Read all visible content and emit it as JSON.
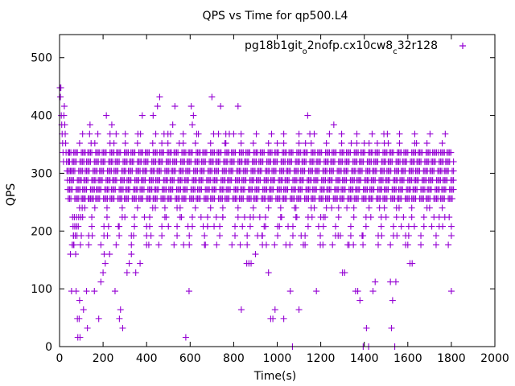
{
  "chart_data": {
    "type": "scatter",
    "title": "QPS vs Time for qp500.L4",
    "xlabel": "Time(s)",
    "ylabel": "QPS",
    "xlim": [
      0,
      2000
    ],
    "ylim": [
      0,
      540
    ],
    "xticks": [
      0,
      200,
      400,
      600,
      800,
      1000,
      1200,
      1400,
      1600,
      1800,
      2000
    ],
    "yticks": [
      0,
      100,
      200,
      300,
      400,
      500
    ],
    "grid": false,
    "legend_position": "top-right",
    "series": [
      {
        "name": "pg18b1git_o2nofp.cx10cw8_c32r128",
        "color": "#9400d3",
        "marker": "plus",
        "dense_levels": [
          256,
          272,
          288,
          304,
          320,
          336
        ],
        "level_range_x": [
          40,
          1810
        ],
        "sparse_levels": [
          176,
          192,
          208,
          224,
          240,
          352,
          368
        ],
        "points": [
          [
            2,
            448
          ],
          [
            4,
            432
          ],
          [
            6,
            448
          ],
          [
            8,
            400
          ],
          [
            10,
            384
          ],
          [
            12,
            368
          ],
          [
            14,
            352
          ],
          [
            16,
            336
          ],
          [
            18,
            320
          ],
          [
            20,
            400
          ],
          [
            22,
            416
          ],
          [
            24,
            384
          ],
          [
            26,
            368
          ],
          [
            28,
            352
          ],
          [
            30,
            336
          ],
          [
            32,
            320
          ],
          [
            34,
            304
          ],
          [
            36,
            288
          ],
          [
            38,
            272
          ],
          [
            40,
            304
          ],
          [
            42,
            320
          ],
          [
            44,
            336
          ],
          [
            46,
            288
          ],
          [
            48,
            304
          ],
          [
            50,
            160
          ],
          [
            55,
            96
          ],
          [
            58,
            176
          ],
          [
            60,
            224
          ],
          [
            62,
            208
          ],
          [
            64,
            192
          ],
          [
            66,
            176
          ],
          [
            68,
            224
          ],
          [
            70,
            208
          ],
          [
            72,
            192
          ],
          [
            74,
            160
          ],
          [
            76,
            96
          ],
          [
            78,
            208
          ],
          [
            80,
            192
          ],
          [
            82,
            48
          ],
          [
            84,
            16
          ],
          [
            86,
            208
          ],
          [
            88,
            224
          ],
          [
            90,
            48
          ],
          [
            92,
            80
          ],
          [
            94,
            16
          ],
          [
            96,
            176
          ],
          [
            98,
            224
          ],
          [
            100,
            192
          ],
          [
            104,
            240
          ],
          [
            106,
            224
          ],
          [
            110,
            64
          ],
          [
            112,
            256
          ],
          [
            116,
            240
          ],
          [
            124,
            96
          ],
          [
            128,
            32
          ],
          [
            132,
            256
          ],
          [
            138,
            368
          ],
          [
            140,
            384
          ],
          [
            145,
            352
          ],
          [
            150,
            192
          ],
          [
            155,
            256
          ],
          [
            160,
            96
          ],
          [
            170,
            272
          ],
          [
            180,
            48
          ],
          [
            190,
            112
          ],
          [
            200,
            128
          ],
          [
            205,
            160
          ],
          [
            210,
            144
          ],
          [
            215,
            400
          ],
          [
            220,
            192
          ],
          [
            225,
            208
          ],
          [
            230,
            160
          ],
          [
            240,
            384
          ],
          [
            250,
            352
          ],
          [
            255,
            96
          ],
          [
            260,
            368
          ],
          [
            270,
            208
          ],
          [
            275,
            48
          ],
          [
            280,
            64
          ],
          [
            290,
            32
          ],
          [
            300,
            224
          ],
          [
            310,
            128
          ],
          [
            320,
            144
          ],
          [
            330,
            160
          ],
          [
            340,
            192
          ],
          [
            350,
            128
          ],
          [
            360,
            368
          ],
          [
            370,
            144
          ],
          [
            380,
            400
          ],
          [
            390,
            224
          ],
          [
            400,
            208
          ],
          [
            410,
            176
          ],
          [
            420,
            192
          ],
          [
            430,
            400
          ],
          [
            440,
            240
          ],
          [
            450,
            416
          ],
          [
            460,
            432
          ],
          [
            470,
            352
          ],
          [
            480,
            368
          ],
          [
            490,
            224
          ],
          [
            500,
            208
          ],
          [
            510,
            368
          ],
          [
            520,
            384
          ],
          [
            530,
            416
          ],
          [
            540,
            240
          ],
          [
            550,
            352
          ],
          [
            560,
            224
          ],
          [
            570,
            176
          ],
          [
            580,
            16
          ],
          [
            590,
            208
          ],
          [
            595,
            96
          ],
          [
            605,
            416
          ],
          [
            610,
            384
          ],
          [
            615,
            400
          ],
          [
            630,
            368
          ],
          [
            650,
            224
          ],
          [
            660,
            208
          ],
          [
            670,
            176
          ],
          [
            680,
            208
          ],
          [
            700,
            432
          ],
          [
            710,
            208
          ],
          [
            720,
            224
          ],
          [
            730,
            368
          ],
          [
            740,
            416
          ],
          [
            750,
            224
          ],
          [
            760,
            352
          ],
          [
            780,
            368
          ],
          [
            800,
            368
          ],
          [
            820,
            416
          ],
          [
            830,
            176
          ],
          [
            835,
            64
          ],
          [
            840,
            208
          ],
          [
            850,
            224
          ],
          [
            860,
            144
          ],
          [
            870,
            144
          ],
          [
            880,
            144
          ],
          [
            890,
            224
          ],
          [
            900,
            160
          ],
          [
            910,
            192
          ],
          [
            920,
            224
          ],
          [
            930,
            192
          ],
          [
            940,
            208
          ],
          [
            950,
            176
          ],
          [
            960,
            128
          ],
          [
            970,
            48
          ],
          [
            980,
            48
          ],
          [
            990,
            64
          ],
          [
            1000,
            352
          ],
          [
            1010,
            208
          ],
          [
            1020,
            224
          ],
          [
            1030,
            48
          ],
          [
            1040,
            176
          ],
          [
            1050,
            208
          ],
          [
            1060,
            96
          ],
          [
            1070,
            0
          ],
          [
            1080,
            240
          ],
          [
            1090,
            224
          ],
          [
            1100,
            64
          ],
          [
            1110,
            192
          ],
          [
            1120,
            176
          ],
          [
            1130,
            352
          ],
          [
            1140,
            400
          ],
          [
            1150,
            368
          ],
          [
            1160,
            224
          ],
          [
            1170,
            240
          ],
          [
            1180,
            96
          ],
          [
            1190,
            208
          ],
          [
            1200,
            224
          ],
          [
            1210,
            176
          ],
          [
            1220,
            224
          ],
          [
            1250,
            240
          ],
          [
            1260,
            384
          ],
          [
            1280,
            192
          ],
          [
            1290,
            192
          ],
          [
            1300,
            128
          ],
          [
            1310,
            128
          ],
          [
            1320,
            240
          ],
          [
            1330,
            176
          ],
          [
            1340,
            352
          ],
          [
            1350,
            176
          ],
          [
            1360,
            96
          ],
          [
            1370,
            96
          ],
          [
            1380,
            80
          ],
          [
            1390,
            192
          ],
          [
            1395,
            0
          ],
          [
            1400,
            352
          ],
          [
            1410,
            32
          ],
          [
            1420,
            0
          ],
          [
            1430,
            224
          ],
          [
            1440,
            96
          ],
          [
            1450,
            112
          ],
          [
            1460,
            352
          ],
          [
            1470,
            240
          ],
          [
            1480,
            192
          ],
          [
            1490,
            368
          ],
          [
            1500,
            224
          ],
          [
            1510,
            352
          ],
          [
            1520,
            112
          ],
          [
            1525,
            32
          ],
          [
            1530,
            80
          ],
          [
            1540,
            0
          ],
          [
            1545,
            112
          ],
          [
            1550,
            192
          ],
          [
            1560,
            240
          ],
          [
            1570,
            208
          ],
          [
            1580,
            224
          ],
          [
            1590,
            192
          ],
          [
            1600,
            176
          ],
          [
            1610,
            144
          ],
          [
            1620,
            144
          ],
          [
            1630,
            208
          ],
          [
            1640,
            352
          ],
          [
            1660,
            320
          ],
          [
            1700,
            240
          ],
          [
            1710,
            208
          ],
          [
            1720,
            224
          ],
          [
            1740,
            336
          ],
          [
            1760,
            208
          ],
          [
            1770,
            224
          ],
          [
            1790,
            224
          ],
          [
            1800,
            96
          ]
        ]
      }
    ]
  }
}
